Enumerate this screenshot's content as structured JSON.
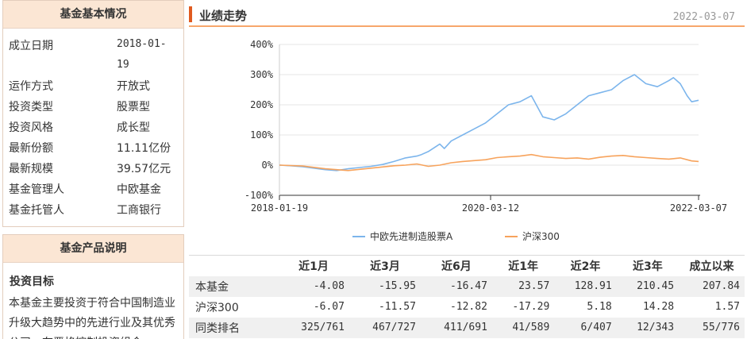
{
  "basic": {
    "title": "基金基本情况",
    "rows": [
      {
        "label": "成立日期",
        "value": "2018-01-",
        "value2": "19"
      },
      {
        "label": "运作方式",
        "value": "开放式"
      },
      {
        "label": "投资类型",
        "value": "股票型"
      },
      {
        "label": "投资风格",
        "value": "成长型"
      },
      {
        "label": "最新份额",
        "value": "11.11亿份"
      },
      {
        "label": "最新规模",
        "value": "39.57亿元"
      },
      {
        "label": "基金管理人",
        "value": "中欧基金"
      },
      {
        "label": "基金托管人",
        "value": "工商银行"
      }
    ]
  },
  "product": {
    "title": "基金产品说明",
    "subtitle": "投资目标",
    "text": "本基金主要投资于符合中国制造业升级大趋势中的先进行业及其优秀公司，在严格控制投资组合"
  },
  "performance": {
    "title": "业绩走势",
    "date": "2022-03-07",
    "colors": {
      "fund": "#7cb5ec",
      "index": "#f7a35c",
      "accent": "#e05a1f"
    }
  },
  "chart_data": {
    "type": "line",
    "title": "",
    "xlabel": "",
    "ylabel": "",
    "x_ticks": [
      "2018-01-19",
      "2020-03-12",
      "2022-03-07"
    ],
    "y_ticks": [
      "400%",
      "300%",
      "200%",
      "100%",
      "0%",
      "-100%"
    ],
    "ylim": [
      -100,
      400
    ],
    "legend": "bottom",
    "series": [
      {
        "name": "中欧先进制造股票A",
        "points": [
          [
            0,
            0
          ],
          [
            0.05,
            -2
          ],
          [
            0.1,
            -5
          ],
          [
            0.15,
            -10
          ],
          [
            0.2,
            -15
          ],
          [
            0.25,
            -18
          ],
          [
            0.3,
            -12
          ],
          [
            0.35,
            -8
          ],
          [
            0.4,
            -4
          ],
          [
            0.45,
            2
          ],
          [
            0.5,
            12
          ],
          [
            0.55,
            24
          ],
          [
            0.6,
            30
          ],
          [
            0.62,
            35
          ],
          [
            0.65,
            45
          ],
          [
            0.7,
            70
          ],
          [
            0.72,
            55
          ],
          [
            0.75,
            80
          ],
          [
            0.8,
            100
          ],
          [
            0.85,
            120
          ],
          [
            0.9,
            140
          ],
          [
            0.95,
            170
          ],
          [
            1.0,
            200
          ],
          [
            1.05,
            210
          ],
          [
            1.1,
            230
          ],
          [
            1.15,
            160
          ],
          [
            1.2,
            150
          ],
          [
            1.25,
            170
          ],
          [
            1.3,
            200
          ],
          [
            1.35,
            230
          ],
          [
            1.4,
            240
          ],
          [
            1.45,
            250
          ],
          [
            1.5,
            280
          ],
          [
            1.55,
            300
          ],
          [
            1.6,
            270
          ],
          [
            1.65,
            260
          ],
          [
            1.7,
            280
          ],
          [
            1.72,
            290
          ],
          [
            1.75,
            270
          ],
          [
            1.78,
            230
          ],
          [
            1.8,
            210
          ],
          [
            1.83,
            215
          ]
        ]
      },
      {
        "name": "沪深300",
        "points": [
          [
            0,
            0
          ],
          [
            0.1,
            -3
          ],
          [
            0.2,
            -12
          ],
          [
            0.3,
            -18
          ],
          [
            0.4,
            -10
          ],
          [
            0.5,
            -2
          ],
          [
            0.55,
            0
          ],
          [
            0.6,
            4
          ],
          [
            0.65,
            -4
          ],
          [
            0.7,
            0
          ],
          [
            0.75,
            8
          ],
          [
            0.8,
            12
          ],
          [
            0.85,
            15
          ],
          [
            0.9,
            18
          ],
          [
            0.95,
            25
          ],
          [
            1.0,
            28
          ],
          [
            1.05,
            30
          ],
          [
            1.1,
            35
          ],
          [
            1.15,
            28
          ],
          [
            1.2,
            25
          ],
          [
            1.25,
            22
          ],
          [
            1.3,
            24
          ],
          [
            1.35,
            20
          ],
          [
            1.4,
            26
          ],
          [
            1.45,
            30
          ],
          [
            1.5,
            32
          ],
          [
            1.55,
            28
          ],
          [
            1.6,
            25
          ],
          [
            1.65,
            22
          ],
          [
            1.7,
            20
          ],
          [
            1.75,
            24
          ],
          [
            1.8,
            14
          ],
          [
            1.83,
            12
          ]
        ]
      }
    ]
  },
  "table": {
    "headers": [
      "",
      "近1月",
      "近3月",
      "近6月",
      "近1年",
      "近2年",
      "近3年",
      "成立以来"
    ],
    "rows": [
      {
        "label": "本基金",
        "cells": [
          "-4.08",
          "-15.95",
          "-16.47",
          "23.57",
          "128.91",
          "210.45",
          "207.84"
        ]
      },
      {
        "label": "沪深300",
        "cells": [
          "-6.07",
          "-11.57",
          "-12.82",
          "-17.29",
          "5.18",
          "14.28",
          "1.57"
        ]
      },
      {
        "label": "同类排名",
        "cells": [
          "325/761",
          "467/727",
          "411/691",
          "41/589",
          "6/407",
          "12/343",
          "55/776"
        ]
      }
    ]
  }
}
